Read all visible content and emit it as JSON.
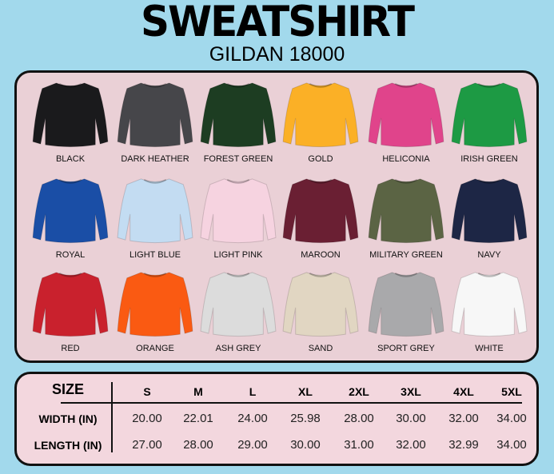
{
  "header": {
    "title": "SWEATSHIRT",
    "subtitle": "GILDAN 18000"
  },
  "colors": [
    {
      "name": "BLACK",
      "hex": "#1a1a1c"
    },
    {
      "name": "DARK HEATHER",
      "hex": "#46464a"
    },
    {
      "name": "FOREST GREEN",
      "hex": "#1d3d22"
    },
    {
      "name": "GOLD",
      "hex": "#fbb026"
    },
    {
      "name": "HELICONIA",
      "hex": "#e0448b"
    },
    {
      "name": "IRISH GREEN",
      "hex": "#1d9a44"
    },
    {
      "name": "ROYAL",
      "hex": "#1a4ea6"
    },
    {
      "name": "LIGHT BLUE",
      "hex": "#c3dcf2"
    },
    {
      "name": "LIGHT PINK",
      "hex": "#f6d3e0"
    },
    {
      "name": "MAROON",
      "hex": "#6a1f33"
    },
    {
      "name": "MILITARY GREEN",
      "hex": "#5b6444"
    },
    {
      "name": "NAVY",
      "hex": "#1d2645"
    },
    {
      "name": "RED",
      "hex": "#c9212d"
    },
    {
      "name": "ORANGE",
      "hex": "#fa5a12"
    },
    {
      "name": "ASH GREY",
      "hex": "#dcdcdc"
    },
    {
      "name": "SAND",
      "hex": "#e1d6c2"
    },
    {
      "name": "SPORT GREY",
      "hex": "#a9a9ab"
    },
    {
      "name": "WHITE",
      "hex": "#f7f7f7"
    }
  ],
  "size_table": {
    "header": "SIZE",
    "sizes": [
      "S",
      "M",
      "L",
      "XL",
      "2XL",
      "3XL",
      "4XL",
      "5XL"
    ],
    "rows": [
      {
        "label": "WIDTH (IN)",
        "values": [
          "20.00",
          "22.01",
          "24.00",
          "25.98",
          "28.00",
          "30.00",
          "32.00",
          "34.00"
        ]
      },
      {
        "label": "LENGTH (IN)",
        "values": [
          "27.00",
          "28.00",
          "29.00",
          "30.00",
          "31.00",
          "32.00",
          "32.99",
          "34.00"
        ]
      }
    ]
  }
}
